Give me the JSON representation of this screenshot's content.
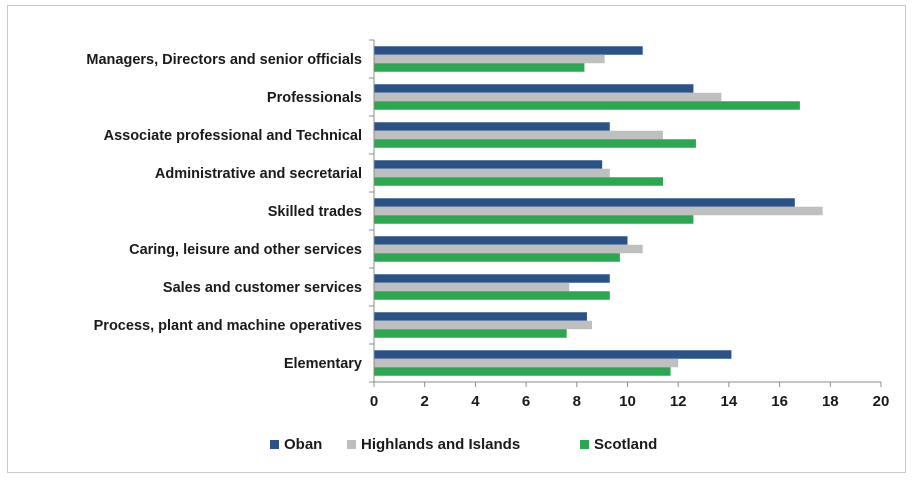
{
  "chart_data": {
    "type": "bar",
    "orientation": "horizontal",
    "categories": [
      "Managers, Directors and senior officials",
      "Professionals",
      "Associate professional and Technical",
      "Administrative and secretarial",
      "Skilled trades",
      "Caring, leisure and other services",
      "Sales and customer services",
      "Process, plant and machine operatives",
      "Elementary"
    ],
    "series": [
      {
        "name": "Oban",
        "color": "#2a5287",
        "values": [
          10.6,
          12.6,
          9.3,
          9.0,
          16.6,
          10.0,
          9.3,
          8.4,
          14.1
        ]
      },
      {
        "name": "Highlands and Islands",
        "color": "#bfbfbf",
        "values": [
          9.1,
          13.7,
          11.4,
          9.3,
          17.7,
          10.6,
          7.7,
          8.6,
          12.0
        ]
      },
      {
        "name": "Scotland",
        "color": "#2aa74f",
        "values": [
          8.3,
          16.8,
          12.7,
          11.4,
          12.6,
          9.7,
          9.3,
          7.6,
          11.7
        ]
      }
    ],
    "xlim": [
      0,
      20
    ],
    "xticks": [
      "0",
      "2",
      "4",
      "6",
      "8",
      "10",
      "12",
      "14",
      "16",
      "18",
      "20"
    ],
    "legend_position": "bottom",
    "grid": false
  }
}
